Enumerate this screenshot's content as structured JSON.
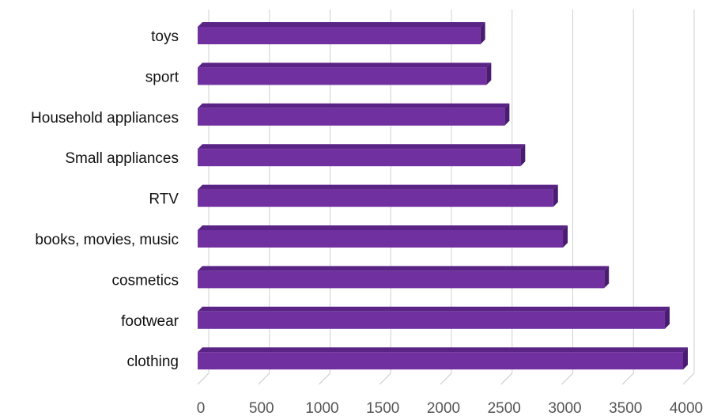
{
  "chart_data": {
    "type": "bar",
    "orientation": "horizontal",
    "style": "3d",
    "categories": [
      "toys",
      "sport",
      "Household appliances",
      "Small appliances",
      "RTV",
      "books, movies, music",
      "cosmetics",
      "footwear",
      "clothing"
    ],
    "values": [
      2330,
      2380,
      2530,
      2660,
      2930,
      3010,
      3350,
      3850,
      4000
    ],
    "xlim": [
      0,
      4000
    ],
    "xticks": [
      "0",
      "500",
      "1000",
      "1500",
      "2000",
      "2500",
      "3000",
      "3500",
      "4000"
    ],
    "grid": true,
    "legend": "none",
    "colors": {
      "bar_front": "#7030a0",
      "bar_top": "#5a2386",
      "bar_side": "#4a1c70",
      "grid": "#d0d0d0",
      "floor": "#c8c8c8"
    }
  }
}
